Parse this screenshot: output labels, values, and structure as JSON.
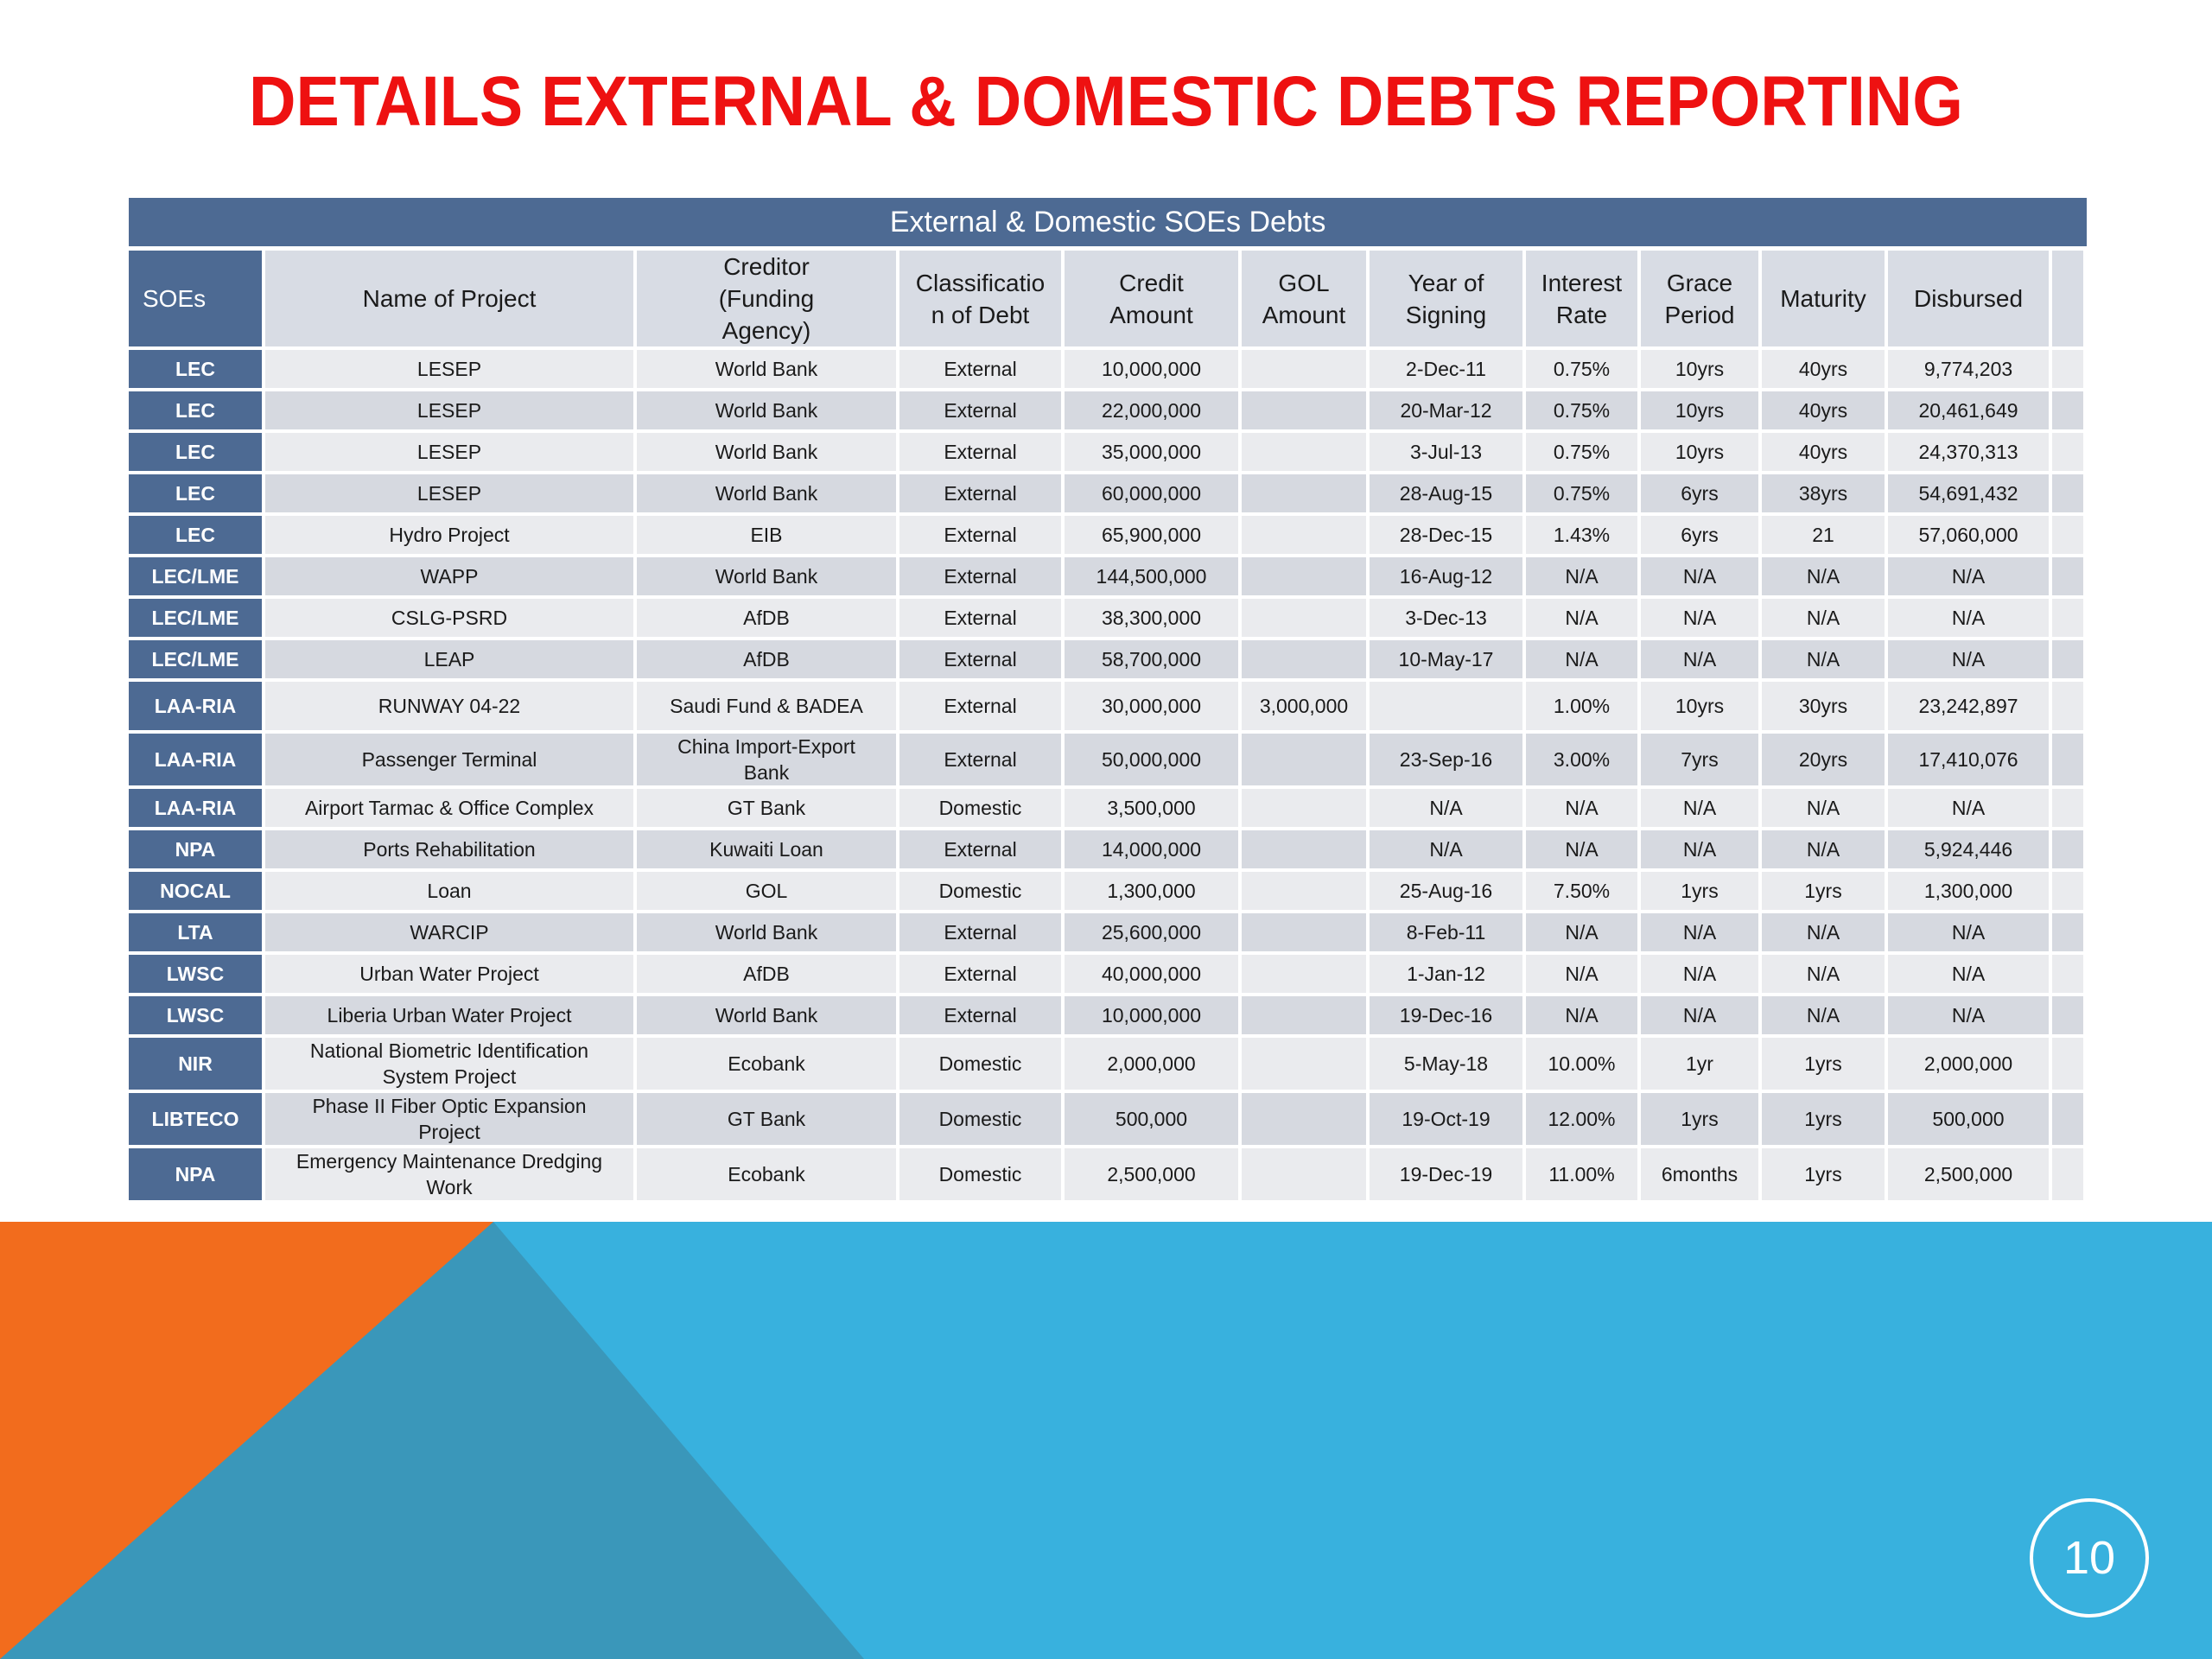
{
  "slide": {
    "title": "Details External & Domestic Debts Reporting",
    "page_number": "10",
    "colors": {
      "title": "#ee1111",
      "header_blue": "#4d6a93",
      "orange": "#f26c1d",
      "cyan": "#38b1de",
      "teal": "#3a97ba"
    }
  },
  "table": {
    "caption": "External & Domestic SOEs Debts",
    "columns": [
      "SOEs",
      "Name of Project",
      "Creditor (Funding Agency)",
      "Classificatio n of Debt",
      "Credit Amount",
      "GOL Amount",
      "Year of Signing",
      "Interest Rate",
      "Grace Period",
      "Maturity",
      "Disbursed"
    ],
    "rows": [
      [
        "LEC",
        "LESEP",
        "World Bank",
        "External",
        "10,000,000",
        "",
        "2-Dec-11",
        "0.75%",
        "10yrs",
        "40yrs",
        "9,774,203"
      ],
      [
        "LEC",
        "LESEP",
        "World Bank",
        "External",
        "22,000,000",
        "",
        "20-Mar-12",
        "0.75%",
        "10yrs",
        "40yrs",
        "20,461,649"
      ],
      [
        "LEC",
        "LESEP",
        "World Bank",
        "External",
        "35,000,000",
        "",
        "3-Jul-13",
        "0.75%",
        "10yrs",
        "40yrs",
        "24,370,313"
      ],
      [
        "LEC",
        "LESEP",
        "World Bank",
        "External",
        "60,000,000",
        "",
        "28-Aug-15",
        "0.75%",
        "6yrs",
        "38yrs",
        "54,691,432"
      ],
      [
        "LEC",
        "Hydro Project",
        "EIB",
        "External",
        "65,900,000",
        "",
        "28-Dec-15",
        "1.43%",
        "6yrs",
        "21",
        "57,060,000"
      ],
      [
        "LEC/LME",
        "WAPP",
        "World Bank",
        "External",
        "144,500,000",
        "",
        "16-Aug-12",
        "N/A",
        "N/A",
        "N/A",
        "N/A"
      ],
      [
        "LEC/LME",
        "CSLG-PSRD",
        "AfDB",
        "External",
        "38,300,000",
        "",
        "3-Dec-13",
        "N/A",
        "N/A",
        "N/A",
        "N/A"
      ],
      [
        "LEC/LME",
        "LEAP",
        "AfDB",
        "External",
        "58,700,000",
        "",
        "10-May-17",
        "N/A",
        "N/A",
        "N/A",
        "N/A"
      ],
      [
        "LAA-RIA",
        "RUNWAY 04-22",
        "Saudi Fund & BADEA",
        "External",
        "30,000,000",
        "3,000,000",
        "",
        "1.00%",
        "10yrs",
        "30yrs",
        "23,242,897"
      ],
      [
        "LAA-RIA",
        "Passenger Terminal",
        "China Import-Export Bank",
        "External",
        "50,000,000",
        "",
        "23-Sep-16",
        "3.00%",
        "7yrs",
        "20yrs",
        "17,410,076"
      ],
      [
        "LAA-RIA",
        "Airport Tarmac & Office Complex",
        "GT Bank",
        "Domestic",
        "3,500,000",
        "",
        "N/A",
        "N/A",
        "N/A",
        "N/A",
        "N/A"
      ],
      [
        "NPA",
        "Ports Rehabilitation",
        "Kuwaiti Loan",
        "External",
        "14,000,000",
        "",
        "N/A",
        "N/A",
        "N/A",
        "N/A",
        "5,924,446"
      ],
      [
        "NOCAL",
        "Loan",
        "GOL",
        "Domestic",
        "1,300,000",
        "",
        "25-Aug-16",
        "7.50%",
        "1yrs",
        "1yrs",
        "1,300,000"
      ],
      [
        "LTA",
        "WARCIP",
        "World Bank",
        "External",
        "25,600,000",
        "",
        "8-Feb-11",
        "N/A",
        "N/A",
        "N/A",
        "N/A"
      ],
      [
        "LWSC",
        "Urban Water Project",
        "AfDB",
        "External",
        "40,000,000",
        "",
        "1-Jan-12",
        "N/A",
        "N/A",
        "N/A",
        "N/A"
      ],
      [
        "LWSC",
        "Liberia Urban Water Project",
        "World Bank",
        "External",
        "10,000,000",
        "",
        "19-Dec-16",
        "N/A",
        "N/A",
        "N/A",
        "N/A"
      ],
      [
        "NIR",
        "National Biometric Identification System Project",
        "Ecobank",
        "Domestic",
        "2,000,000",
        "",
        "5-May-18",
        "10.00%",
        "1yr",
        "1yrs",
        "2,000,000"
      ],
      [
        "LIBTECO",
        "Phase II Fiber Optic Expansion Project",
        "GT Bank",
        "Domestic",
        "500,000",
        "",
        "19-Oct-19",
        "12.00%",
        "1yrs",
        "1yrs",
        "500,000"
      ],
      [
        "NPA",
        "Emergency Maintenance Dredging Work",
        "Ecobank",
        "Domestic",
        "2,500,000",
        "",
        "19-Dec-19",
        "11.00%",
        "6months",
        "1yrs",
        "2,500,000"
      ]
    ]
  }
}
